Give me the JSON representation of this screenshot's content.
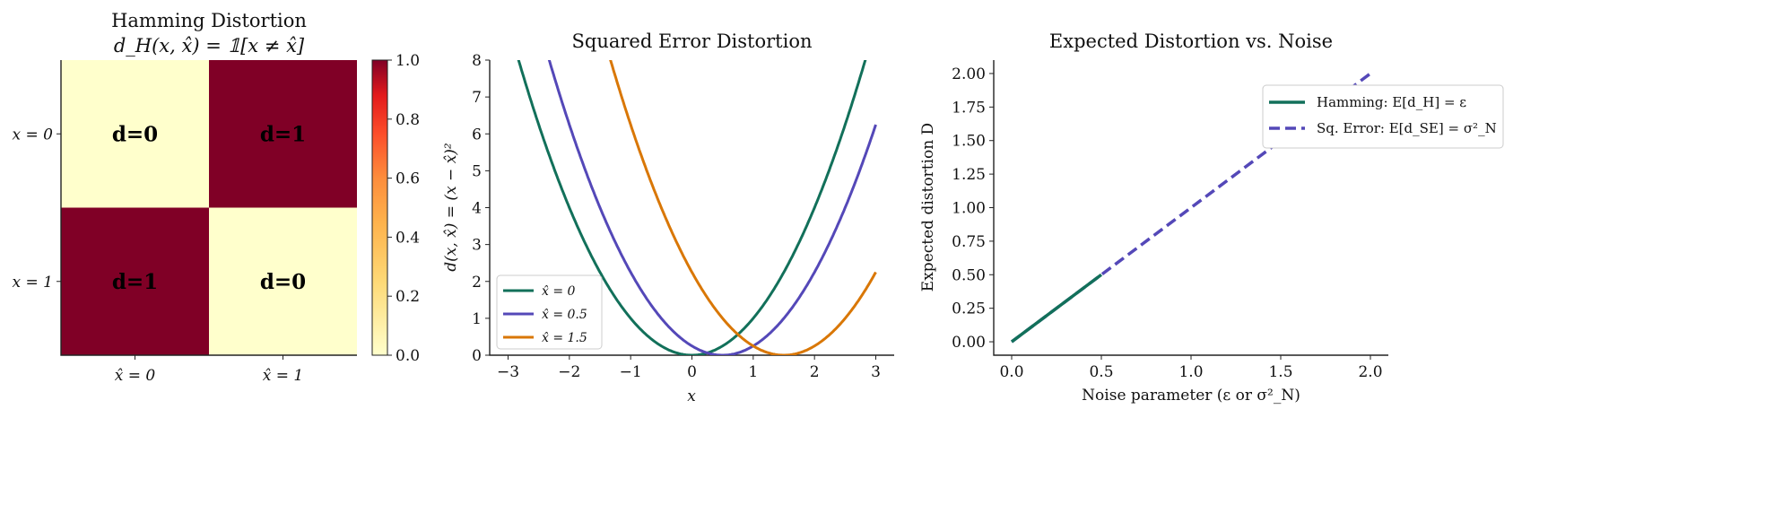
{
  "chart_data": [
    {
      "type": "heatmap",
      "title": "Hamming Distortion",
      "subtitle": "d_H(x, x̂) = 𝟙[x ≠ x̂]",
      "row_labels": [
        "x = 0",
        "x = 1"
      ],
      "col_labels": [
        "x̂ = 0",
        "x̂ = 1"
      ],
      "values": [
        [
          0,
          1
        ],
        [
          1,
          0
        ]
      ],
      "cell_labels": [
        [
          "d=0",
          "d=1"
        ],
        [
          "d=1",
          "d=0"
        ]
      ],
      "colorbar": {
        "range": [
          0,
          1
        ],
        "ticks": [
          "0.0",
          "0.2",
          "0.4",
          "0.6",
          "0.8",
          "1.0"
        ],
        "colormap": "YlOrRd",
        "low_color": "#ffffcc",
        "high_color": "#800026"
      }
    },
    {
      "type": "line",
      "title": "Squared Error Distortion",
      "xlabel": "x",
      "ylabel": "d(x, x̂) = (x − x̂)²",
      "xlim": [
        -3.3,
        3.3
      ],
      "ylim": [
        0,
        8
      ],
      "xticks": [
        "−3",
        "−2",
        "−1",
        "0",
        "1",
        "2",
        "3"
      ],
      "yticks": [
        "0",
        "1",
        "2",
        "3",
        "4",
        "5",
        "6",
        "7",
        "8"
      ],
      "legend_placement": "lower-left",
      "series": [
        {
          "name": "x̂ = 0",
          "center": 0,
          "x_range": [
            -3,
            3
          ],
          "color": "#12705a"
        },
        {
          "name": "x̂ = 0.5",
          "center": 0.5,
          "x_range": [
            -3,
            3
          ],
          "color": "#5448b8"
        },
        {
          "name": "x̂ = 1.5",
          "center": 1.5,
          "x_range": [
            -3,
            3
          ],
          "color": "#d97706"
        }
      ]
    },
    {
      "type": "line",
      "title": "Expected Distortion vs. Noise",
      "xlabel": "Noise parameter (ε or σ²_N)",
      "ylabel": "Expected distortion D",
      "xlim": [
        -0.1,
        2.1
      ],
      "ylim": [
        -0.1,
        2.1
      ],
      "xticks": [
        "0.0",
        "0.5",
        "1.0",
        "1.5",
        "2.0"
      ],
      "yticks": [
        "0.00",
        "0.25",
        "0.50",
        "0.75",
        "1.00",
        "1.25",
        "1.50",
        "1.75",
        "2.00"
      ],
      "legend_placement": "upper-left",
      "series": [
        {
          "name": "Hamming: E[d_H] = ε",
          "x": [
            0,
            0.5
          ],
          "y": [
            0,
            0.5
          ],
          "color": "#12705a",
          "style": "solid"
        },
        {
          "name": "Sq. Error: E[d_SE] = σ²_N",
          "x": [
            0,
            2
          ],
          "y": [
            0,
            2
          ],
          "color": "#5448b8",
          "style": "dashed"
        }
      ]
    }
  ]
}
